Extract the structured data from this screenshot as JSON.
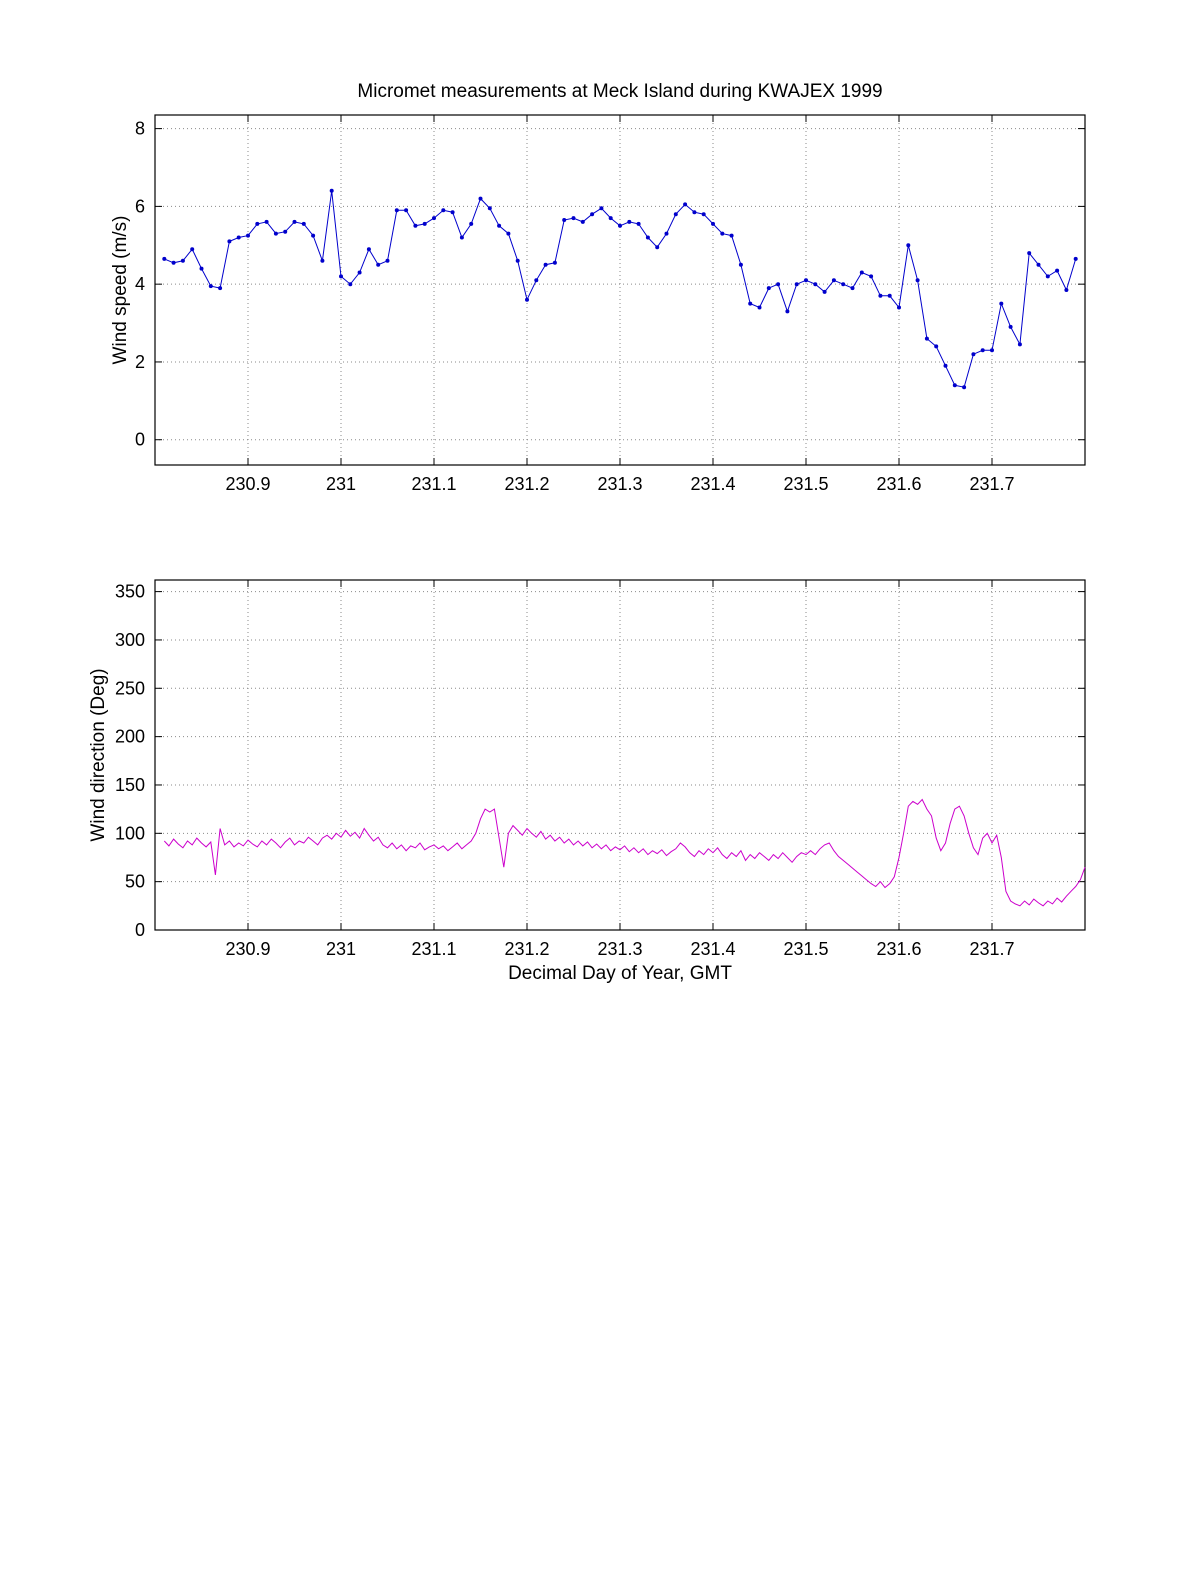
{
  "figure": {
    "title": "Micromet measurements at Meck Island during KWAJEX 1999",
    "background": "#ffffff"
  },
  "chart_data": [
    {
      "type": "line",
      "title": "Micromet measurements at Meck Island during KWAJEX 1999",
      "xlabel": "",
      "ylabel": "Wind speed (m/s)",
      "xlim": [
        230.8,
        231.8
      ],
      "ylim": [
        -0.65,
        8.35
      ],
      "xticks": [
        230.9,
        231.0,
        231.1,
        231.2,
        231.3,
        231.4,
        231.5,
        231.6,
        231.7
      ],
      "xtick_labels": [
        "230.9",
        "231",
        "231.1",
        "231.2",
        "231.3",
        "231.4",
        "231.5",
        "231.6",
        "231.7"
      ],
      "yticks": [
        0,
        2,
        4,
        6,
        8
      ],
      "ytick_labels": [
        "0",
        "2",
        "4",
        "6",
        "8"
      ],
      "grid": true,
      "legend": "none",
      "line_color": "#0000cc",
      "marker": "dot",
      "series": [
        {
          "name": "wind_speed_mps",
          "x_start": 230.81,
          "x_step": 0.01,
          "values": [
            4.65,
            4.55,
            4.6,
            4.9,
            4.4,
            3.95,
            3.9,
            5.1,
            5.2,
            5.25,
            5.55,
            5.6,
            5.3,
            5.35,
            5.6,
            5.55,
            5.25,
            4.6,
            6.4,
            4.2,
            4.0,
            4.3,
            4.9,
            4.5,
            4.6,
            5.9,
            5.9,
            5.5,
            5.55,
            5.7,
            5.9,
            5.85,
            5.2,
            5.55,
            6.2,
            5.95,
            5.5,
            5.3,
            4.6,
            3.6,
            4.1,
            4.5,
            4.55,
            5.65,
            5.7,
            5.6,
            5.8,
            5.95,
            5.7,
            5.5,
            5.6,
            5.55,
            5.2,
            4.95,
            5.3,
            5.8,
            6.05,
            5.85,
            5.8,
            5.55,
            5.3,
            5.25,
            4.5,
            3.5,
            3.4,
            3.9,
            4.0,
            3.3,
            4.0,
            4.1,
            4.0,
            3.8,
            4.1,
            4.0,
            3.9,
            4.3,
            4.2,
            3.7,
            3.7,
            3.4,
            5.0,
            4.1,
            2.6,
            2.4,
            1.9,
            1.4,
            1.35,
            2.2,
            2.3,
            2.3,
            3.5,
            2.9,
            2.45,
            4.8,
            4.5,
            4.2,
            4.35,
            3.85,
            4.65
          ]
        }
      ]
    },
    {
      "type": "line",
      "title": "",
      "xlabel": "Decimal Day of Year, GMT",
      "ylabel": "Wind direction (Deg)",
      "xlim": [
        230.8,
        231.8
      ],
      "ylim": [
        0,
        362
      ],
      "xticks": [
        230.9,
        231.0,
        231.1,
        231.2,
        231.3,
        231.4,
        231.5,
        231.6,
        231.7
      ],
      "xtick_labels": [
        "230.9",
        "231",
        "231.1",
        "231.2",
        "231.3",
        "231.4",
        "231.5",
        "231.6",
        "231.7"
      ],
      "yticks": [
        0,
        50,
        100,
        150,
        200,
        250,
        300,
        350
      ],
      "ytick_labels": [
        "0",
        "50",
        "100",
        "150",
        "200",
        "250",
        "300",
        "350"
      ],
      "grid": true,
      "legend": "none",
      "line_color": "#cc00cc",
      "marker": "none",
      "series": [
        {
          "name": "wind_direction_deg",
          "x_start": 230.81,
          "x_step": 0.005,
          "values": [
            92,
            87,
            94,
            89,
            85,
            92,
            88,
            95,
            90,
            86,
            91,
            57,
            105,
            88,
            92,
            86,
            90,
            87,
            93,
            89,
            86,
            92,
            88,
            94,
            90,
            85,
            91,
            95,
            88,
            92,
            90,
            96,
            92,
            88,
            95,
            98,
            94,
            100,
            96,
            103,
            97,
            101,
            95,
            105,
            98,
            92,
            96,
            88,
            85,
            90,
            84,
            88,
            82,
            87,
            85,
            90,
            83,
            86,
            88,
            84,
            87,
            82,
            86,
            90,
            84,
            88,
            92,
            100,
            115,
            125,
            122,
            125,
            95,
            65,
            100,
            108,
            103,
            98,
            105,
            100,
            96,
            102,
            94,
            98,
            92,
            96,
            90,
            94,
            88,
            92,
            87,
            91,
            85,
            89,
            84,
            88,
            82,
            86,
            83,
            87,
            81,
            85,
            80,
            84,
            78,
            82,
            79,
            83,
            77,
            81,
            84,
            90,
            86,
            80,
            76,
            82,
            78,
            84,
            80,
            85,
            78,
            74,
            80,
            76,
            82,
            72,
            78,
            74,
            80,
            76,
            72,
            78,
            74,
            80,
            75,
            70,
            76,
            80,
            78,
            82,
            78,
            84,
            88,
            90,
            82,
            76,
            72,
            68,
            64,
            60,
            56,
            52,
            48,
            45,
            50,
            44,
            48,
            55,
            75,
            100,
            128,
            133,
            130,
            135,
            125,
            118,
            95,
            82,
            90,
            110,
            125,
            128,
            118,
            100,
            85,
            78,
            95,
            100,
            90,
            98,
            75,
            40,
            30,
            27,
            25,
            30,
            26,
            32,
            28,
            25,
            30,
            27,
            33,
            29,
            35,
            40,
            45,
            52,
            65
          ]
        }
      ]
    }
  ]
}
